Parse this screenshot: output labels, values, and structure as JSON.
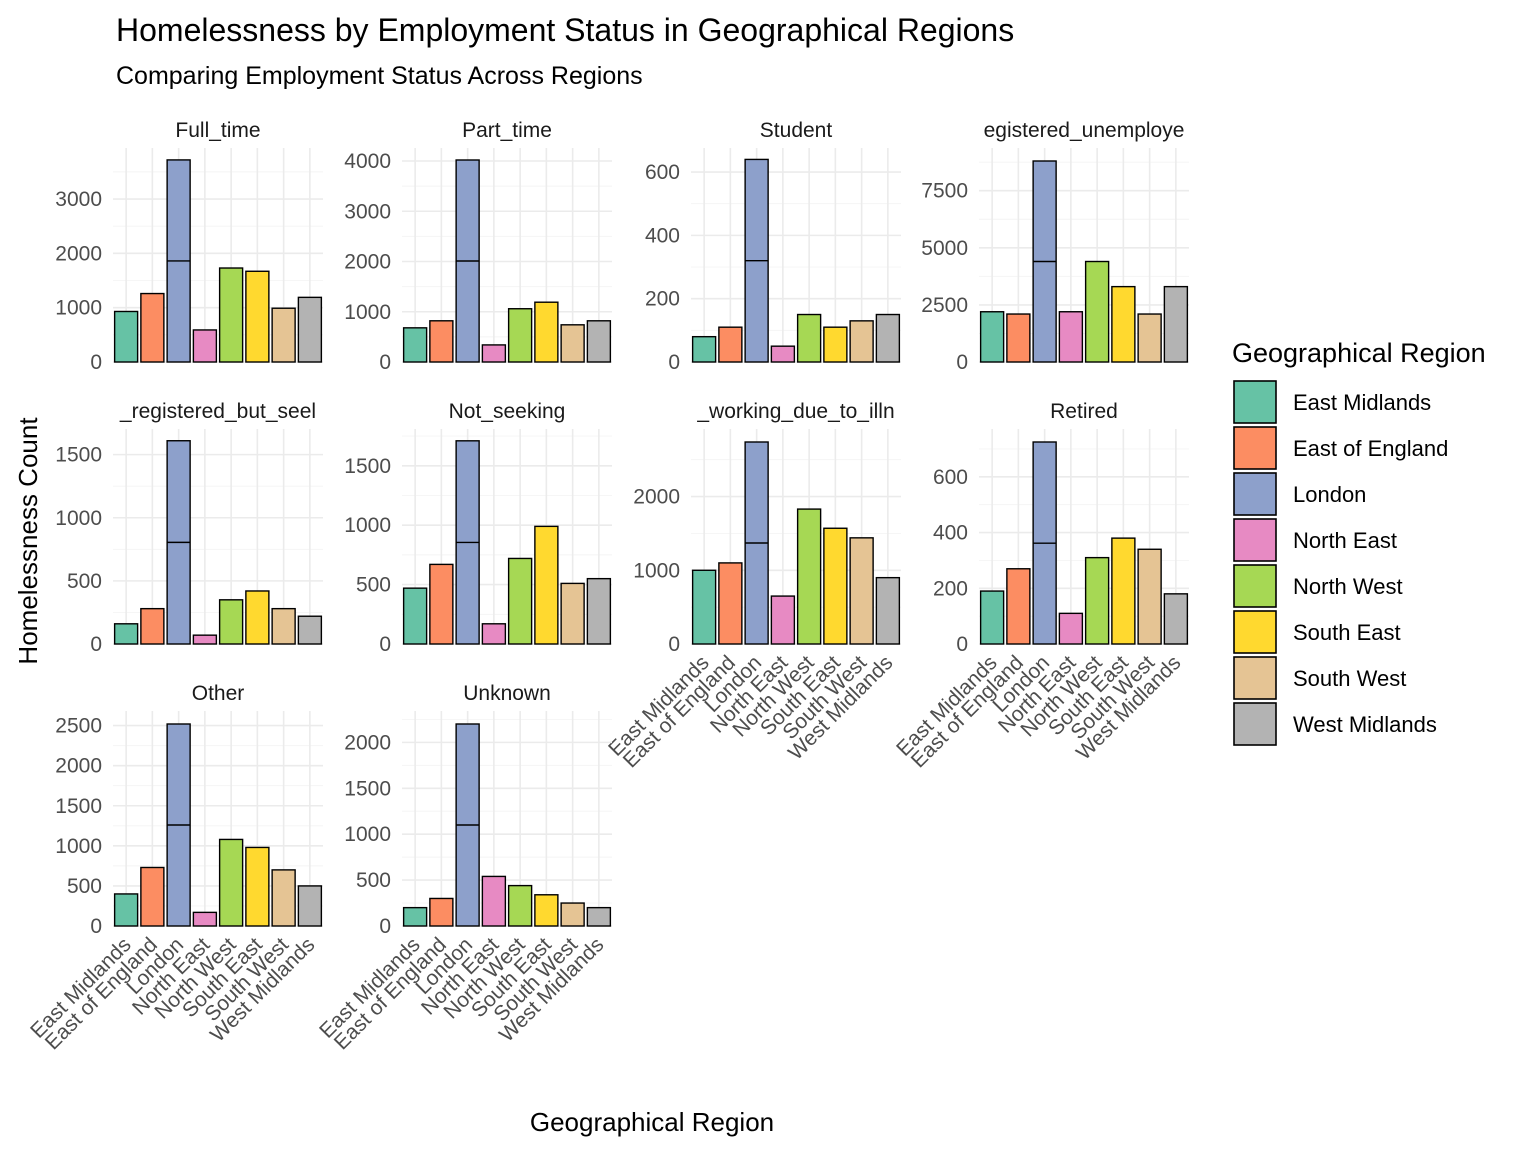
{
  "chart_data": {
    "type": "bar",
    "title": "Homelessness by Employment Status in Geographical Regions",
    "subtitle": "Comparing Employment Status Across Regions",
    "xlabel": "Geographical Region",
    "ylabel": "Homelessness Count",
    "grid": true,
    "legend": {
      "title": "Geographical Region",
      "placement": "right",
      "entries": [
        "East Midlands",
        "East of England",
        "London",
        "North East",
        "North West",
        "South East",
        "South West",
        "West Midlands"
      ]
    },
    "categories": [
      "East Midlands",
      "East of England",
      "London",
      "North East",
      "North West",
      "South East",
      "South West",
      "West Midlands"
    ],
    "colors": {
      "East Midlands": "#66c2a5",
      "East of England": "#fc8d62",
      "London": "#8da0cb",
      "North East": "#e78ac3",
      "North West": "#a6d854",
      "South East": "#ffd92f",
      "South West": "#e5c494",
      "West Midlands": "#b3b3b3"
    },
    "facets": [
      {
        "label": "Full_time",
        "ticks": [
          0,
          1000,
          2000,
          3000
        ],
        "tick_labels": [
          "0",
          "1000",
          "2000",
          "3000"
        ],
        "ylim": [
          0,
          3700
        ],
        "values": [
          930,
          1260,
          3720,
          590,
          1730,
          1670,
          990,
          1190
        ],
        "stacked_split": {
          "London": 1860
        }
      },
      {
        "label": "Part_time",
        "ticks": [
          0,
          1000,
          2000,
          3000,
          4000
        ],
        "tick_labels": [
          "0",
          "1000",
          "2000",
          "3000",
          "4000"
        ],
        "ylim": [
          0,
          4000
        ],
        "values": [
          680,
          820,
          4020,
          340,
          1060,
          1190,
          740,
          820
        ],
        "stacked_split": {
          "London": 2010
        }
      },
      {
        "label": "Student",
        "ticks": [
          0,
          200,
          400,
          600
        ],
        "tick_labels": [
          "0",
          "200",
          "400",
          "600"
        ],
        "ylim": [
          0,
          635
        ],
        "values": [
          80,
          110,
          640,
          50,
          150,
          110,
          130,
          150
        ],
        "stacked_split": {
          "London": 320
        }
      },
      {
        "label": "egistered_unemploye",
        "ticks": [
          0,
          2500,
          5000,
          7500
        ],
        "tick_labels": [
          "0",
          "2500",
          "5000",
          "7500"
        ],
        "ylim": [
          0,
          8800
        ],
        "values": [
          2200,
          2100,
          8800,
          2200,
          4400,
          3300,
          2100,
          3300
        ],
        "stacked_split": {
          "London": 4400
        }
      },
      {
        "label": "_registered_but_seel",
        "ticks": [
          0,
          500,
          1000,
          1500
        ],
        "tick_labels": [
          "0",
          "500",
          "1000",
          "1500"
        ],
        "ylim": [
          0,
          1600
        ],
        "values": [
          160,
          280,
          1610,
          70,
          350,
          420,
          280,
          220
        ],
        "stacked_split": {
          "London": 805
        }
      },
      {
        "label": "Not_seeking",
        "ticks": [
          0,
          500,
          1000,
          1500
        ],
        "tick_labels": [
          "0",
          "500",
          "1000",
          "1500"
        ],
        "ylim": [
          0,
          1700
        ],
        "values": [
          470,
          670,
          1710,
          170,
          720,
          990,
          510,
          550
        ],
        "stacked_split": {
          "London": 855
        }
      },
      {
        "label": "_working_due_to_illn",
        "ticks": [
          0,
          1000,
          2000
        ],
        "tick_labels": [
          "0",
          "1000",
          "2000"
        ],
        "ylim": [
          0,
          2740
        ],
        "values": [
          1000,
          1100,
          2740,
          650,
          1830,
          1570,
          1440,
          900
        ],
        "stacked_split": {
          "London": 1370
        }
      },
      {
        "label": "Retired",
        "ticks": [
          0,
          200,
          400,
          600
        ],
        "tick_labels": [
          "0",
          "200",
          "400",
          "600"
        ],
        "ylim": [
          0,
          725
        ],
        "values": [
          190,
          270,
          725,
          110,
          310,
          380,
          340,
          180
        ],
        "stacked_split": {
          "London": 362
        }
      },
      {
        "label": "Other",
        "ticks": [
          0,
          500,
          1000,
          1500,
          2000,
          2500
        ],
        "tick_labels": [
          "0",
          "500",
          "1000",
          "1500",
          "2000",
          "2500"
        ],
        "ylim": [
          0,
          2520
        ],
        "values": [
          400,
          730,
          2520,
          170,
          1080,
          980,
          700,
          500
        ],
        "stacked_split": {
          "London": 1260
        }
      },
      {
        "label": "Unknown",
        "ticks": [
          0,
          500,
          1000,
          1500,
          2000
        ],
        "tick_labels": [
          "0",
          "500",
          "1000",
          "1500",
          "2000"
        ],
        "ylim": [
          0,
          2200
        ],
        "values": [
          200,
          300,
          2200,
          540,
          440,
          340,
          250,
          200
        ],
        "stacked_split": {
          "London": 1100
        }
      }
    ]
  }
}
